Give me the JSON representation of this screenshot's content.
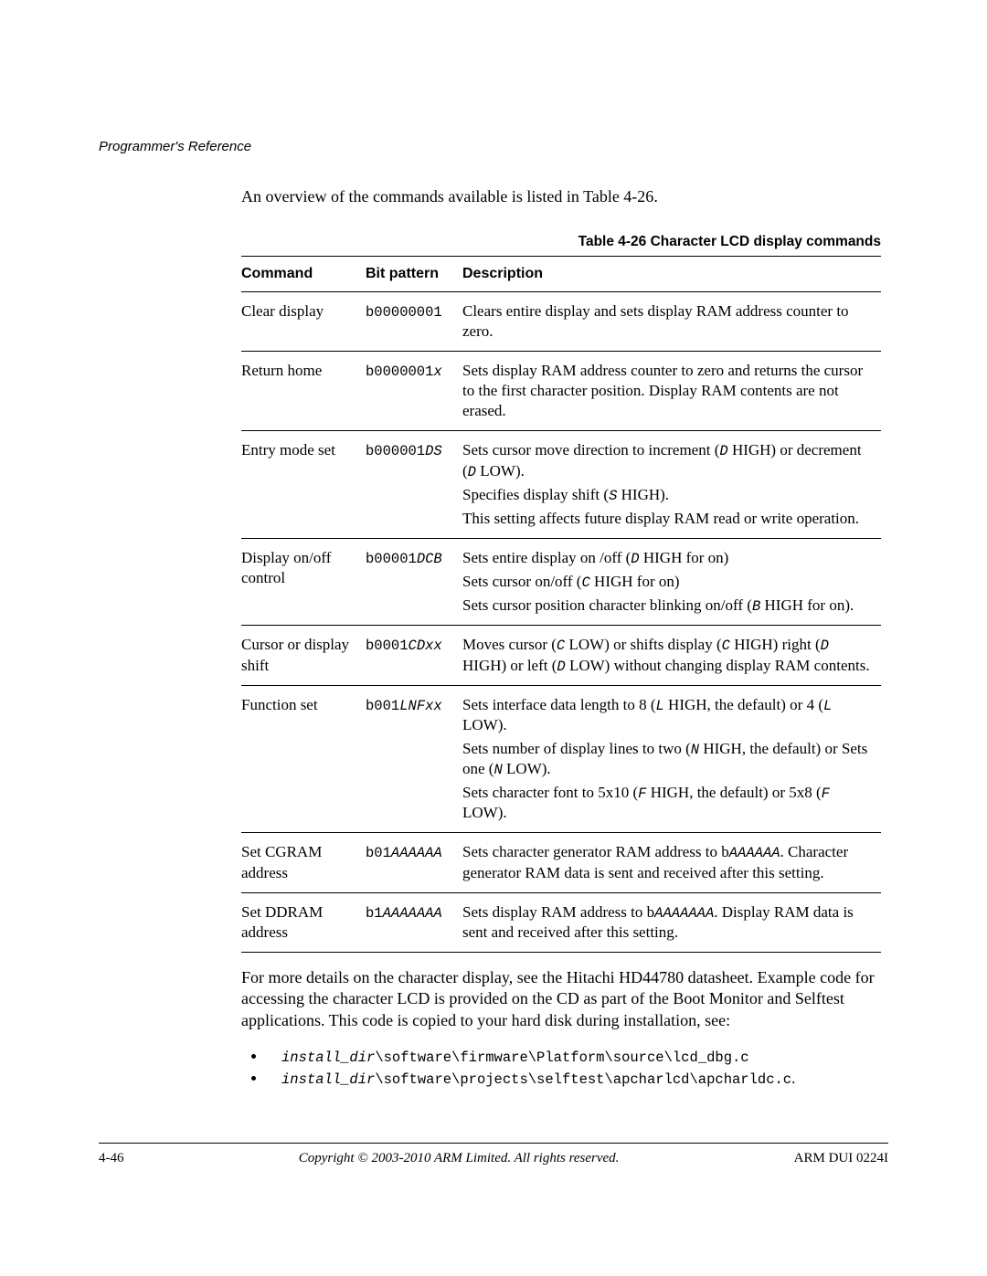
{
  "header": {
    "section": "Programmer's Reference"
  },
  "intro": {
    "text_a": "An overview of the commands available is listed in ",
    "table_ref": "Table 4-26",
    "text_b": "."
  },
  "table": {
    "caption": "Table 4-26 Character LCD display commands",
    "columns": {
      "command": "Command",
      "bit": "Bit pattern",
      "desc": "Description"
    },
    "rows": [
      {
        "command": "Clear display",
        "bit_pre": "b00000001",
        "bit_var": "",
        "desc": [
          {
            "runs": [
              {
                "t": "Clears entire display and sets display RAM address counter to zero."
              }
            ]
          }
        ]
      },
      {
        "command": "Return home",
        "bit_pre": "b0000001",
        "bit_var": "x",
        "desc": [
          {
            "runs": [
              {
                "t": "Sets display RAM address counter to zero and returns the cursor to the first character position. Display RAM contents are not erased."
              }
            ]
          }
        ]
      },
      {
        "command": "Entry mode set",
        "bit_pre": "b000001",
        "bit_var": "DS",
        "desc": [
          {
            "runs": [
              {
                "t": "Sets cursor move direction to increment ("
              },
              {
                "t": "D",
                "mono_it": true
              },
              {
                "t": " HIGH) or decrement ("
              },
              {
                "t": "D",
                "mono_it": true
              },
              {
                "t": " LOW)."
              }
            ]
          },
          {
            "runs": [
              {
                "t": "Specifies display shift ("
              },
              {
                "t": "S",
                "mono_it": true
              },
              {
                "t": " HIGH)."
              }
            ]
          },
          {
            "runs": [
              {
                "t": "This setting affects future display RAM read or write operation."
              }
            ]
          }
        ]
      },
      {
        "command": "Display on/off control",
        "bit_pre": "b00001",
        "bit_var": "DCB",
        "desc": [
          {
            "runs": [
              {
                "t": "Sets entire display on /off ("
              },
              {
                "t": "D",
                "mono_it": true
              },
              {
                "t": " HIGH for on)"
              }
            ]
          },
          {
            "runs": [
              {
                "t": "Sets cursor on/off ("
              },
              {
                "t": "C",
                "mono_it": true
              },
              {
                "t": " HIGH for on)"
              }
            ]
          },
          {
            "runs": [
              {
                "t": "Sets cursor position character blinking on/off ("
              },
              {
                "t": "B",
                "mono_it": true
              },
              {
                "t": " HIGH for on)."
              }
            ]
          }
        ]
      },
      {
        "command": "Cursor or display shift",
        "bit_pre": "b0001",
        "bit_var": "CDxx",
        "desc": [
          {
            "runs": [
              {
                "t": "Moves cursor ("
              },
              {
                "t": "C",
                "mono_it": true
              },
              {
                "t": " LOW) or shifts display ("
              },
              {
                "t": "C",
                "mono_it": true
              },
              {
                "t": " HIGH) right ("
              },
              {
                "t": "D",
                "mono_it": true
              },
              {
                "t": " HIGH) or left ("
              },
              {
                "t": "D",
                "mono_it": true
              },
              {
                "t": " LOW) without changing display RAM contents."
              }
            ]
          }
        ]
      },
      {
        "command": "Function set",
        "bit_pre": "b001",
        "bit_var": "LNFxx",
        "desc": [
          {
            "runs": [
              {
                "t": "Sets interface data length to 8 ("
              },
              {
                "t": "L",
                "mono_it": true
              },
              {
                "t": " HIGH, the default) or 4 ("
              },
              {
                "t": "L",
                "mono_it": true
              },
              {
                "t": " LOW)."
              }
            ]
          },
          {
            "runs": [
              {
                "t": "Sets number of display lines to two ("
              },
              {
                "t": "N",
                "mono_it": true
              },
              {
                "t": " HIGH, the default) or Sets one ("
              },
              {
                "t": "N",
                "mono_it": true
              },
              {
                "t": " LOW)."
              }
            ]
          },
          {
            "runs": [
              {
                "t": "Sets character font to 5x10 ("
              },
              {
                "t": "F",
                "mono_it": true
              },
              {
                "t": " HIGH, the default) or 5x8 ("
              },
              {
                "t": "F",
                "mono_it": true
              },
              {
                "t": " LOW)."
              }
            ]
          }
        ]
      },
      {
        "command": "Set CGRAM address",
        "bit_pre": "b01",
        "bit_var": "AAAAAA",
        "desc": [
          {
            "runs": [
              {
                "t": "Sets character generator RAM address to b"
              },
              {
                "t": "AAAAAA",
                "mono_it": true
              },
              {
                "t": ". Character generator RAM data is sent and received after this setting."
              }
            ]
          }
        ]
      },
      {
        "command": "Set DDRAM address",
        "bit_pre": "b1",
        "bit_var": "AAAAAAA",
        "desc": [
          {
            "runs": [
              {
                "t": "Sets display RAM address to b"
              },
              {
                "t": "AAAAAAA",
                "mono_it": true
              },
              {
                "t": ". Display RAM data is sent and received after this setting."
              }
            ]
          }
        ]
      }
    ]
  },
  "post_text": "For more details on the character display, see the Hitachi HD44780 datasheet. Example code for accessing the character LCD is provided on the CD as part of the Boot Monitor and Selftest applications. This code is copied to your hard disk during installation, see:",
  "paths": [
    {
      "pre": "install_dir",
      "rest": "\\software\\firmware\\Platform\\source\\lcd_dbg.c"
    },
    {
      "pre": "install_dir",
      "rest": "\\software\\projects\\selftest\\apcharlcd\\apcharldc.c",
      "suffix": "."
    }
  ],
  "footer": {
    "page": "4-46",
    "copyright": "Copyright © 2003-2010 ARM Limited. All rights reserved.",
    "docid": "ARM DUI 0224I"
  }
}
